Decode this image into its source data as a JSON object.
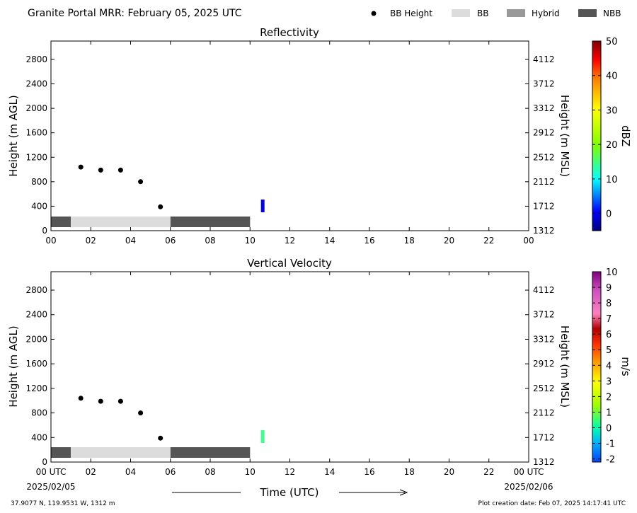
{
  "header": {
    "title": "Granite Portal MRR:  February 05, 2025 UTC",
    "legend": [
      {
        "label": "BB Height",
        "kind": "dot",
        "color": "#000000"
      },
      {
        "label": "BB",
        "kind": "patch",
        "color": "#dcdcdc"
      },
      {
        "label": "Hybrid",
        "kind": "patch",
        "color": "#999999"
      },
      {
        "label": "NBB",
        "kind": "patch",
        "color": "#555555"
      }
    ]
  },
  "footer": {
    "location": "37.9077 N, 119.9531 W, 1312 m",
    "created": "Plot creation date: Feb 07, 2025 14:17:41 UTC",
    "xlabel": "Time (UTC)",
    "date_start": "2025/02/05",
    "date_end": "2025/02/06"
  },
  "chart_data": [
    {
      "type": "heatmap",
      "title": "Reflectivity",
      "ylabel": "Height (m AGL)",
      "ylabel_right": "Height (m MSL)",
      "xlim": [
        0,
        24
      ],
      "ylim": [
        0,
        3100
      ],
      "x_ticks": [
        "00",
        "02",
        "04",
        "06",
        "08",
        "10",
        "12",
        "14",
        "16",
        "18",
        "20",
        "22",
        "00"
      ],
      "y_ticks": [
        0,
        400,
        800,
        1200,
        1600,
        2000,
        2400,
        2800
      ],
      "y_ticks_right": [
        "1312",
        "1712",
        "2112",
        "2512",
        "2912",
        "3312",
        "3712",
        "4112"
      ],
      "colorbar": {
        "label": "dBZ",
        "min": -5,
        "max": 50,
        "ticks": [
          "50",
          "40",
          "30",
          "20",
          "10",
          "0"
        ]
      },
      "bb_height": [
        {
          "x": 1.5,
          "y": 1040
        },
        {
          "x": 2.5,
          "y": 990
        },
        {
          "x": 3.5,
          "y": 990
        },
        {
          "x": 4.5,
          "y": 800
        },
        {
          "x": 5.5,
          "y": 390
        }
      ],
      "bb_type": [
        {
          "start": 0,
          "end": 1,
          "type": "NBB"
        },
        {
          "start": 1,
          "end": 6,
          "type": "BB"
        },
        {
          "start": 6,
          "end": 10,
          "type": "NBB"
        }
      ]
    },
    {
      "type": "heatmap",
      "title": "Vertical Velocity",
      "ylabel": "Height (m AGL)",
      "ylabel_right": "Height (m MSL)",
      "xlim": [
        0,
        24
      ],
      "ylim": [
        0,
        3100
      ],
      "x_ticks": [
        "00 UTC",
        "02",
        "04",
        "06",
        "08",
        "10",
        "12",
        "14",
        "16",
        "18",
        "20",
        "22",
        "00 UTC"
      ],
      "y_ticks": [
        0,
        400,
        800,
        1200,
        1600,
        2000,
        2400,
        2800
      ],
      "y_ticks_right": [
        "1312",
        "1712",
        "2112",
        "2512",
        "2912",
        "3312",
        "3712",
        "4112"
      ],
      "colorbar": {
        "label": "m/s",
        "min": -2.2,
        "max": 10,
        "ticks": [
          "10",
          "9",
          "8",
          "7",
          "6",
          "5",
          "4",
          "3",
          "2",
          "1",
          "0",
          "-1",
          "-2"
        ]
      },
      "bb_height": [
        {
          "x": 1.5,
          "y": 1040
        },
        {
          "x": 2.5,
          "y": 990
        },
        {
          "x": 3.5,
          "y": 990
        },
        {
          "x": 4.5,
          "y": 800
        },
        {
          "x": 5.5,
          "y": 390
        }
      ],
      "bb_type": [
        {
          "start": 0,
          "end": 1,
          "type": "NBB"
        },
        {
          "start": 1,
          "end": 6,
          "type": "BB"
        },
        {
          "start": 6,
          "end": 10,
          "type": "NBB"
        }
      ]
    }
  ]
}
